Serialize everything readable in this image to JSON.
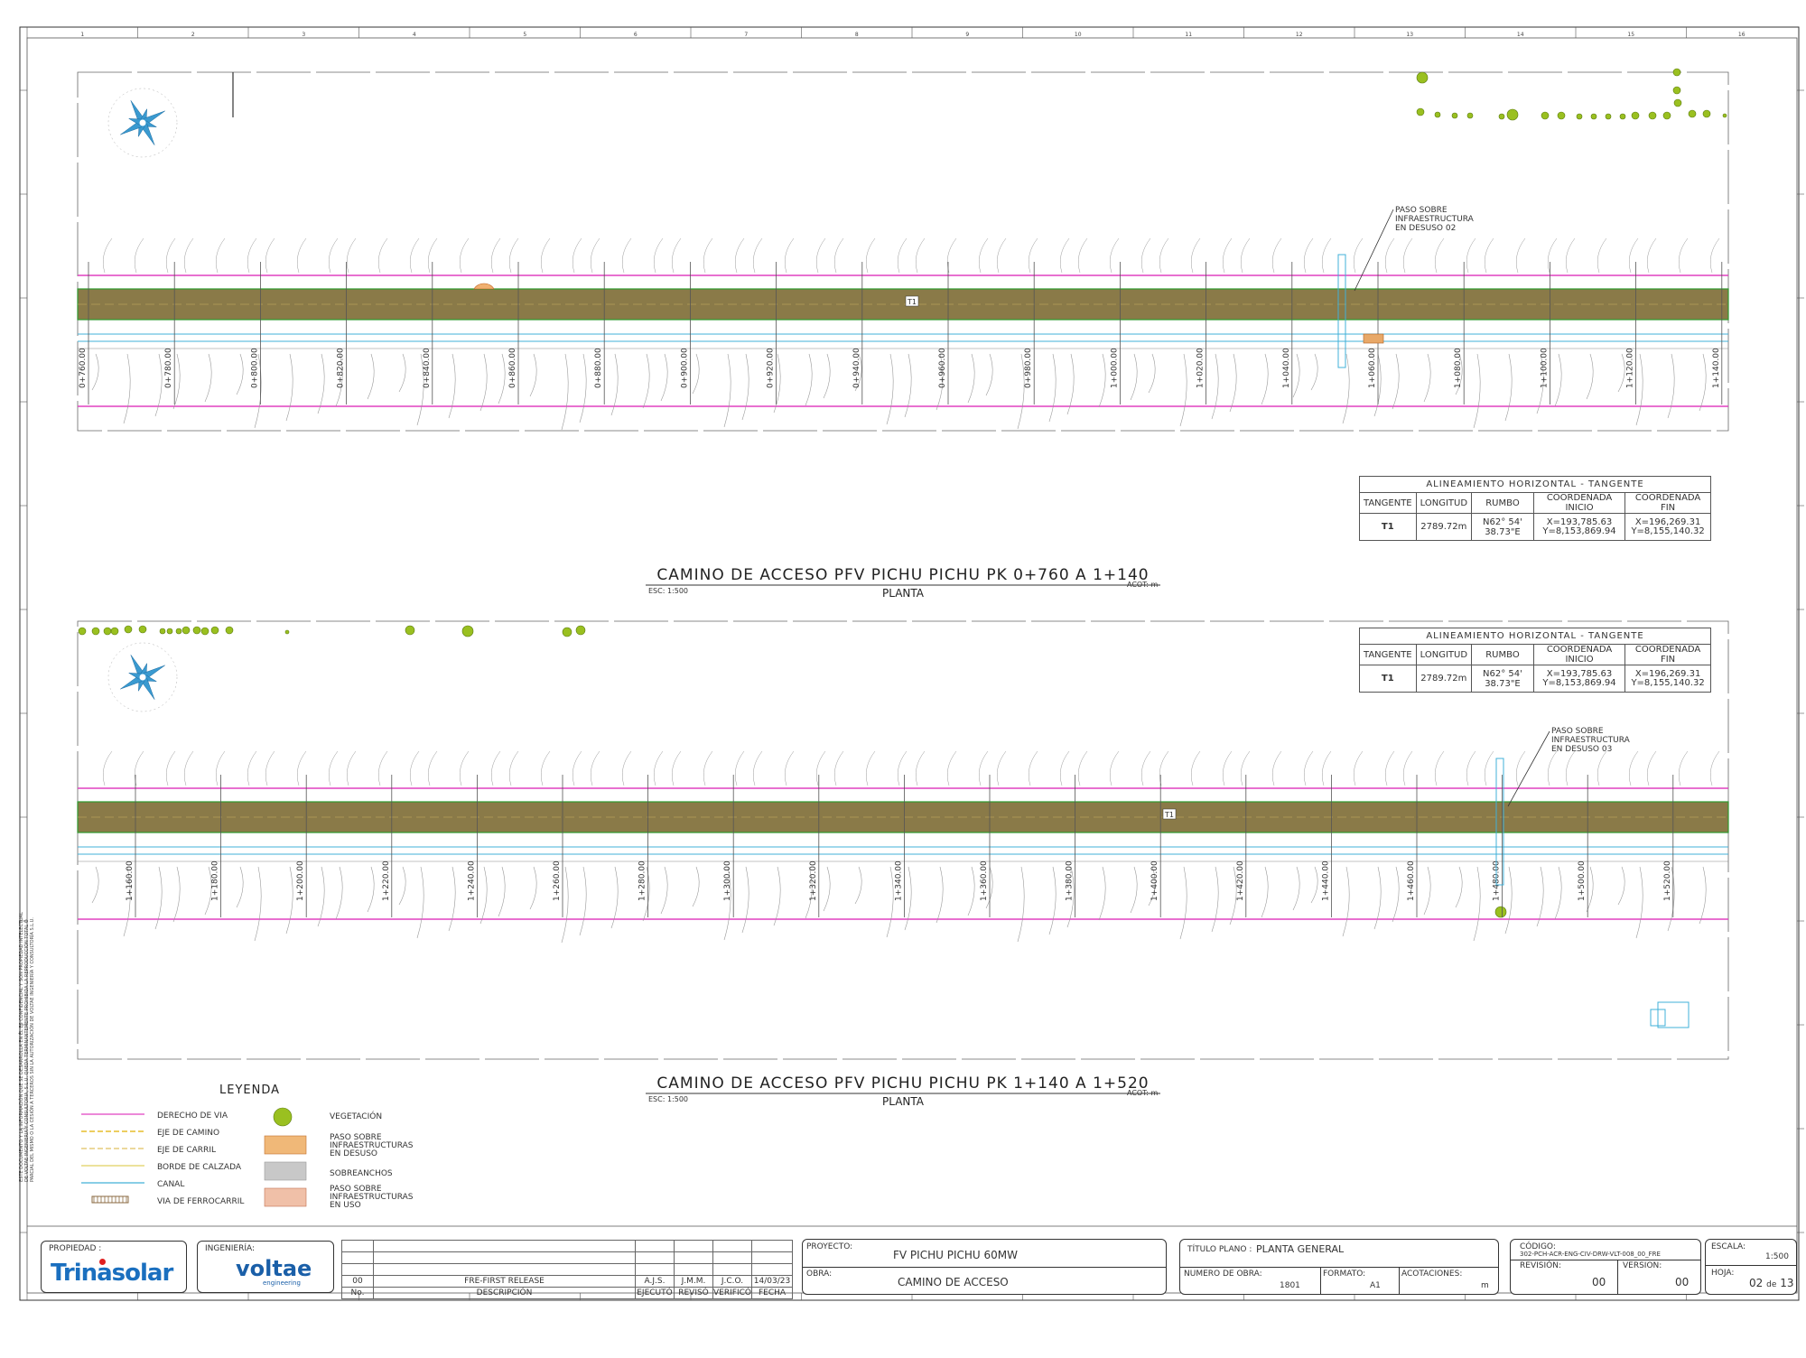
{
  "sheet": {
    "grid_numbers": [
      "1",
      "2",
      "3",
      "4",
      "5",
      "6",
      "7",
      "8",
      "9",
      "10",
      "11",
      "12",
      "13",
      "14",
      "15",
      "16"
    ]
  },
  "plans": [
    {
      "title": "CAMINO DE ACCESO PFV PICHU PICHU PK 0+760 A 1+140",
      "subtitle": "PLANTA",
      "scale": "ESC: 1:500",
      "units": "ACOT: m",
      "road_label": "T1",
      "stations": [
        "0+760.00",
        "0+780.00",
        "0+800.00",
        "0+820.00",
        "0+840.00",
        "0+860.00",
        "0+880.00",
        "0+900.00",
        "0+920.00",
        "0+940.00",
        "0+960.00",
        "0+980.00",
        "1+000.00",
        "1+020.00",
        "1+040.00",
        "1+060.00",
        "1+080.00",
        "1+100.00",
        "1+120.00",
        "1+140.00"
      ],
      "callout": [
        "PASO SOBRE",
        "INFRAESTRUCTURA",
        "EN DESUSO 02"
      ]
    },
    {
      "title": "CAMINO DE ACCESO PFV PICHU PICHU PK 1+140 A 1+520",
      "subtitle": "PLANTA",
      "scale": "ESC: 1:500",
      "units": "ACOT: m",
      "road_label": "T1",
      "stations": [
        "1+160.00",
        "1+180.00",
        "1+200.00",
        "1+220.00",
        "1+240.00",
        "1+260.00",
        "1+280.00",
        "1+300.00",
        "1+320.00",
        "1+340.00",
        "1+360.00",
        "1+380.00",
        "1+400.00",
        "1+420.00",
        "1+440.00",
        "1+460.00",
        "1+480.00",
        "1+500.00",
        "1+520.00"
      ],
      "callout": [
        "PASO SOBRE",
        "INFRAESTRUCTURA",
        "EN DESUSO 03"
      ]
    }
  ],
  "alignment_table": {
    "title": "ALINEAMIENTO HORIZONTAL - TANGENTE",
    "headers": [
      "TANGENTE",
      "LONGITUD",
      "RUMBO",
      "COORDENADA INICIO",
      "COORDENADA FIN"
    ],
    "row": {
      "tangente": "T1",
      "longitud": "2789.72m",
      "rumbo": "N62° 54' 38.73\"E",
      "inicio_x": "X=193,785.63",
      "inicio_y": "Y=8,153,869.94",
      "fin_x": "X=196,269.31",
      "fin_y": "Y=8,155,140.32"
    }
  },
  "legend": {
    "title": "LEYENDA",
    "items": [
      {
        "label": "DERECHO DE VIA",
        "color": "#e040c0"
      },
      {
        "label": "EJE DE CAMINO",
        "color": "#e0b000"
      },
      {
        "label": "EJE DE CARRIL",
        "color": "#e0c060"
      },
      {
        "label": "BORDE DE CALZADA",
        "color": "#e0d060"
      },
      {
        "label": "CANAL",
        "color": "#40b0d8"
      },
      {
        "label": "VIA DE FERROCARRIL",
        "color": "#8a6a40"
      }
    ],
    "right_items": [
      {
        "lines": [
          "VEGETACIÓN"
        ],
        "icon": "vegetation-icon"
      },
      {
        "lines": [
          "PASO SOBRE",
          "INFRAESTRUCTURAS",
          "EN DESUSO"
        ],
        "icon": "hatch-orange-icon"
      },
      {
        "lines": [
          "SOBREANCHOS"
        ],
        "icon": "grey-fill-icon"
      },
      {
        "lines": [
          "PASO SOBRE",
          "INFRAESTRUCTURAS",
          "EN USO"
        ],
        "icon": "hatch-salmon-icon"
      }
    ]
  },
  "title_block": {
    "propiedad_label": "PROPIEDAD :",
    "owner_logo": "Trinasolar",
    "ingenieria_label": "INGENIERÍA:",
    "engineer_logo": "voltae",
    "engineer_logo_sub": "engineering",
    "revision_row": {
      "no": "00",
      "desc": "FRE-FIRST RELEASE",
      "ejecuto": "A.J.S.",
      "reviso": "J.M.M.",
      "verifico": "J.C.O.",
      "fecha": "14/03/23"
    },
    "revision_headers": {
      "no": "No.",
      "desc": "DESCRIPCIÓN",
      "ejecuto": "EJECUTÓ",
      "reviso": "REVISÓ",
      "verifico": "VERIFICÓ",
      "fecha": "FECHA"
    },
    "proyecto_label": "PROYECTO:",
    "proyecto": "FV PICHU PICHU 60MW",
    "obra_label": "OBRA:",
    "obra": "CAMINO DE ACCESO",
    "titulo_label": "TÍTULO PLANO :",
    "titulo": "PLANTA GENERAL",
    "numero_obra_label": "NUMERO DE OBRA:",
    "numero_obra": "1801",
    "formato_label": "FORMATO:",
    "formato": "A1",
    "acotaciones_label": "ACOTACIONES:",
    "acotaciones": "m",
    "codigo_label": "CÓDIGO:",
    "codigo": "302-PCH-ACR-ENG-CIV-DRW-VLT-008_00_FRE",
    "revision_label": "REVISIÓN:",
    "revision": "00",
    "version_label": "VERSION:",
    "version": "00",
    "escala_label": "ESCALA:",
    "escala": "1:500",
    "hoja_label": "HOJA:",
    "hoja": "02",
    "hoja_de": "de",
    "hoja_total": "13"
  },
  "side_note": "ESTE DOCUMENTO Y LA INFORMACIÓN QUE SE DESARROLLA EN ÉL ES CONFIDENCIAL Y SON PROPIEDAD INTELECTUAL DE VOLTAE INGENIERIA Y CONSULTORIA, S.L.U. QUEDA TERMINANTEMENTE PROHIBIDA LA REPRODUCCIÓN TOTAL O PARCIAL DEL MISMO O LA CESIÓN A TERCEROS SIN LA AUTORIZACIÓN DE VOLTAE INGENIERÍA Y CONSULTORÍA S.L.U.",
  "colors": {
    "row_line": "#e040c0",
    "road_fill": "#8a7a48",
    "road_edge": "#2e9a2e",
    "canal": "#40b0d8",
    "contour": "#999999",
    "vegetation": "#9ac020",
    "compass": "#3a9ad0"
  }
}
